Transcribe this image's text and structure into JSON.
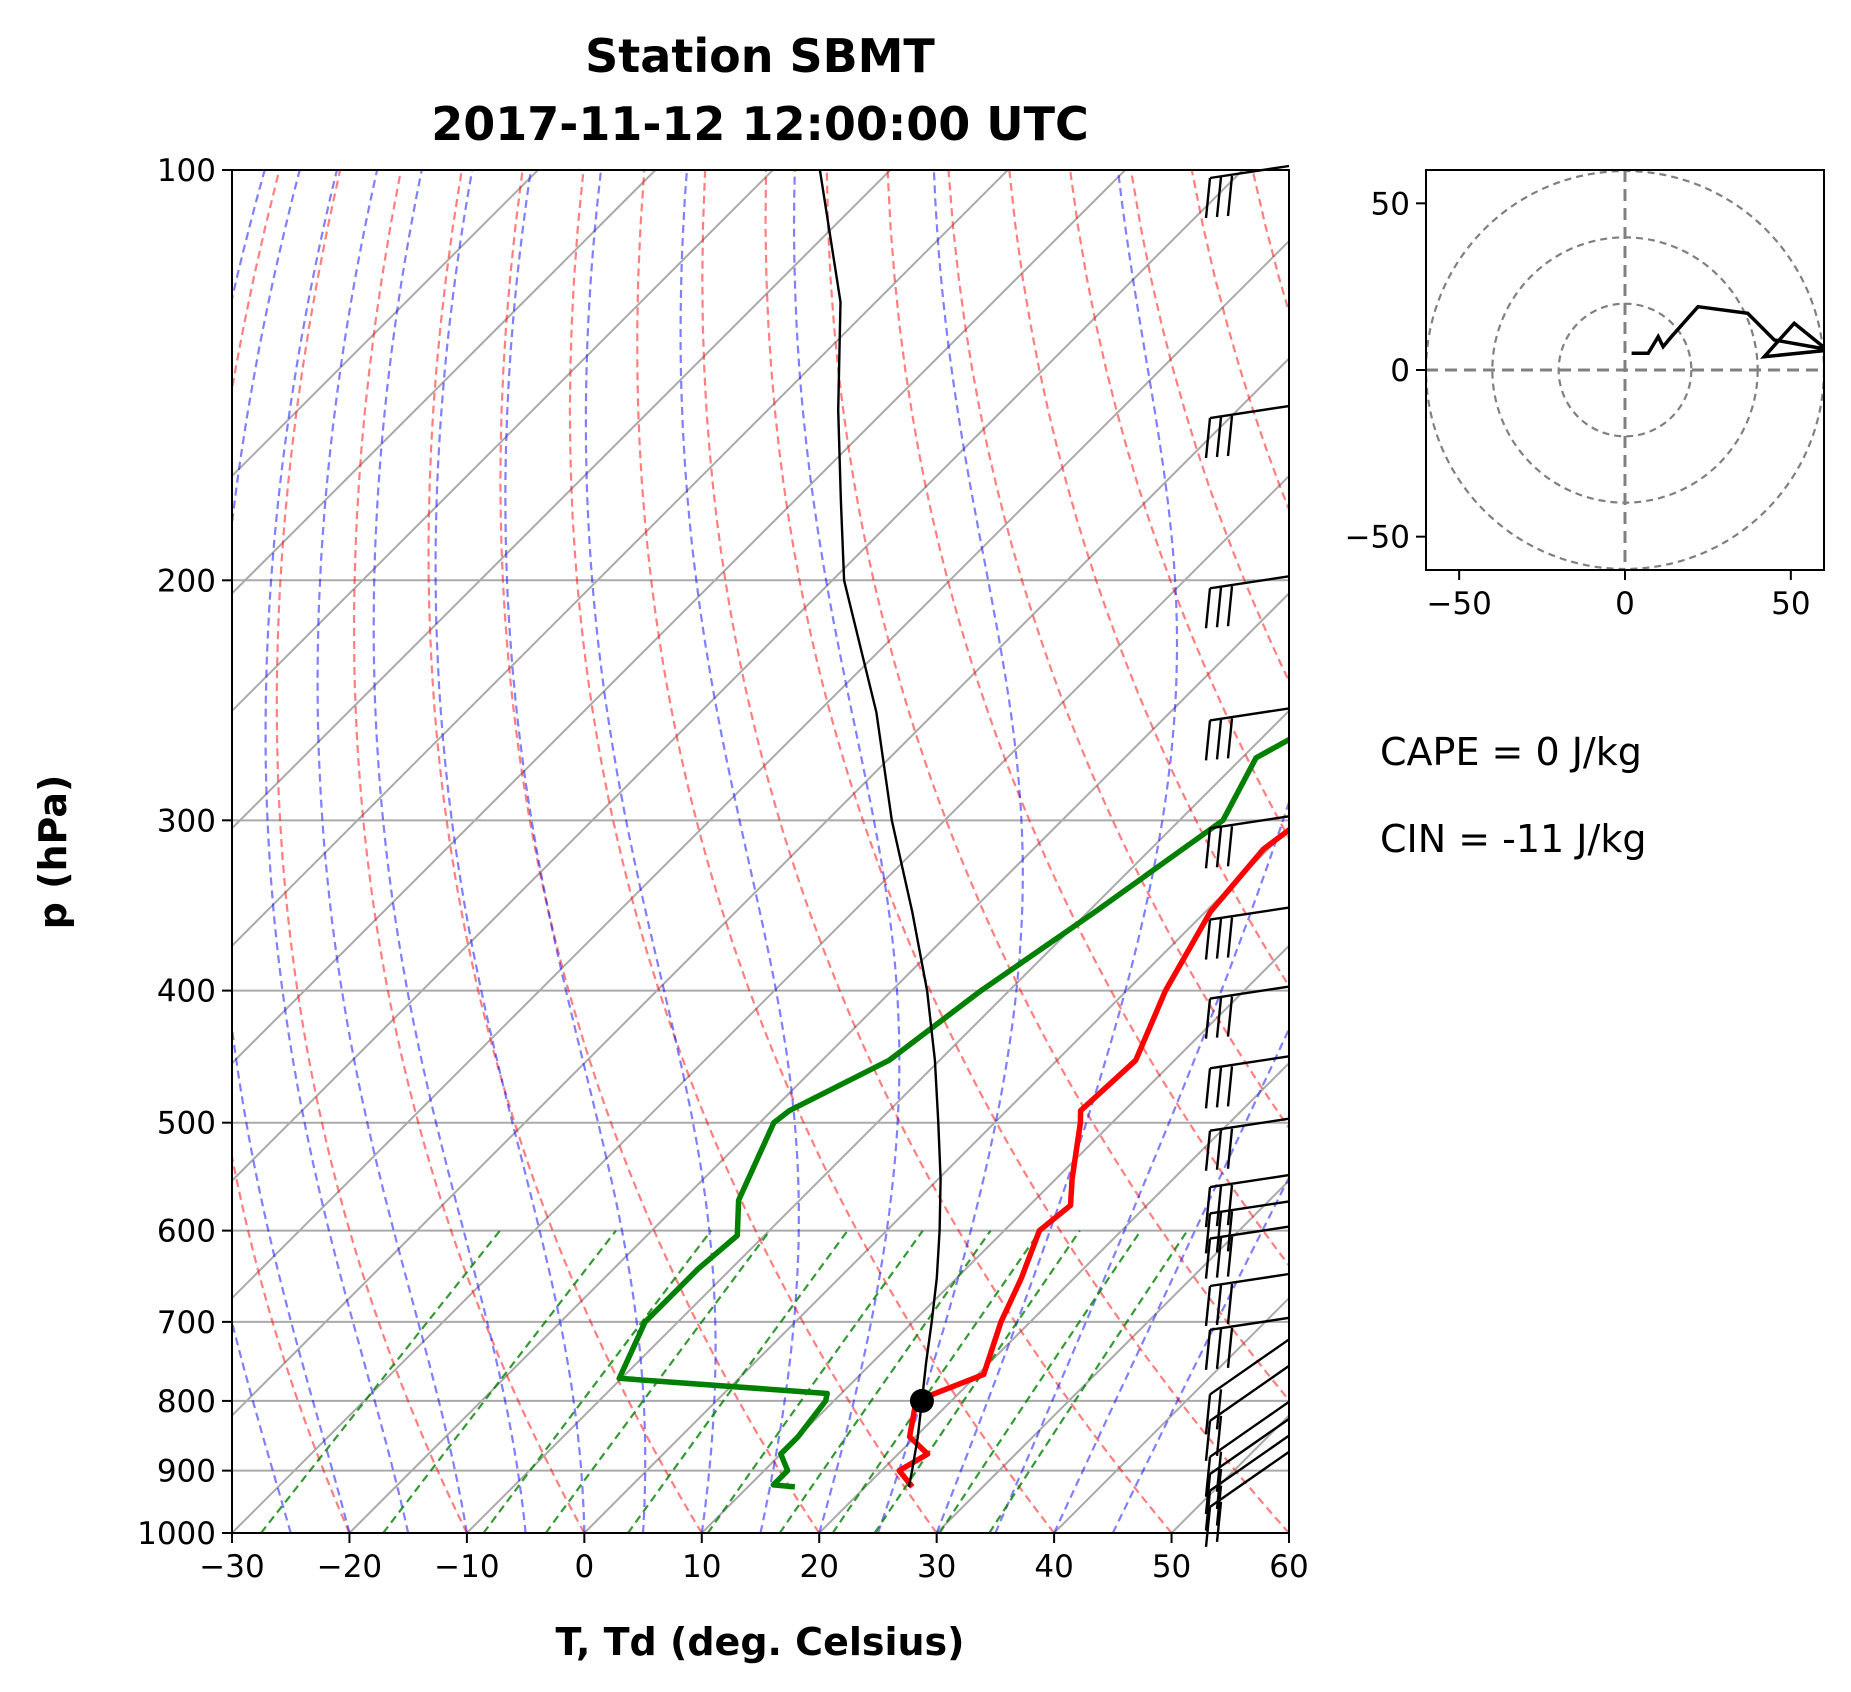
{
  "chart_data": [
    {
      "type": "line",
      "kind": "skew-t log-p sounding",
      "title_line1": "Station SBMT",
      "title_line2": "2017-11-12 12:00:00 UTC",
      "xlabel": "T, Td (deg. Celsius)",
      "ylabel": "p (hPa)",
      "xlim": [
        -30,
        60
      ],
      "ylim": [
        1000,
        100
      ],
      "y_scale": "log",
      "x_ticks": [
        "−30",
        "−20",
        "−10",
        "0",
        "10",
        "20",
        "30",
        "40",
        "50",
        "60"
      ],
      "y_ticks": [
        "1000",
        "900",
        "800",
        "700",
        "600",
        "500",
        "400",
        "300",
        "200",
        "100"
      ],
      "grid": true,
      "series": [
        {
          "color": "#ff0000",
          "pressure": [
            925,
            900,
            875,
            850,
            800,
            765,
            700,
            650,
            600,
            575,
            550,
            500,
            490,
            450,
            400,
            350,
            315,
            300,
            270,
            250,
            225,
            200,
            175,
            150,
            130,
            100
          ],
          "values": [
            24,
            21.5,
            22.5,
            19.5,
            17,
            20.5,
            17.5,
            15.5,
            13,
            13.5,
            11.4,
            7.3,
            6.3,
            6.7,
            3.3,
            0.4,
            -0.4,
            0.4,
            0.4,
            1.1,
            0.9,
            -1.3,
            -1.4,
            -1.9,
            -4.5,
            -6.3
          ]
        },
        {
          "color": "#008000",
          "pressure": [
            925,
            922,
            900,
            875,
            850,
            800,
            790,
            770,
            700,
            640,
            605,
            570,
            500,
            490,
            450,
            400,
            350,
            300,
            270,
            255,
            225,
            200,
            175,
            150,
            125,
            100
          ],
          "values": [
            14,
            12,
            12,
            10,
            10,
            9.3,
            8.8,
            -10.2,
            -12.8,
            -12.8,
            -12.3,
            -15.2,
            -18.8,
            -18.5,
            -14.3,
            -12.4,
            -9.4,
            -6.3,
            -8.8,
            -6.5,
            -4.5,
            -3.7,
            -1.4,
            2.3,
            7.5,
            13.1
          ]
        },
        {
          "color": "#000000",
          "pressure": [
            925,
            900,
            850,
            800,
            750,
            700,
            650,
            600,
            550,
            500,
            450,
            400,
            350,
            300,
            250,
            200,
            175,
            150,
            125,
            100
          ],
          "values": [
            23.7,
            22.6,
            20.2,
            17.5,
            14.6,
            11.6,
            8.3,
            4.5,
            0.2,
            -4.8,
            -10.4,
            -17,
            -25,
            -34.5,
            -45,
            -59,
            -66,
            -74,
            -83,
            -96
          ]
        }
      ],
      "lcl": {
        "pressure": 800,
        "value": 17.5
      },
      "wind_barb_pressures": [
        925,
        900,
        875,
        850,
        800,
        765,
        700,
        650,
        600,
        575,
        550,
        500,
        450,
        400,
        350,
        300,
        250,
        200,
        150,
        100
      ]
    },
    {
      "type": "line",
      "kind": "hodograph",
      "xlim": [
        -60,
        60
      ],
      "ylim": [
        -60,
        60
      ],
      "x_ticks": [
        "−50",
        "0",
        "50"
      ],
      "y_ticks": [
        "50",
        "0",
        "−50"
      ],
      "rings": [
        20,
        40,
        60
      ],
      "x": [
        2,
        7,
        10,
        11.5,
        14,
        22,
        37,
        45,
        62,
        42,
        51,
        61
      ],
      "y": [
        5,
        5,
        10,
        7,
        10,
        19,
        17,
        9,
        6,
        4,
        14,
        6
      ]
    }
  ],
  "stats": {
    "cape": "CAPE = 0 J/kg",
    "cin": "CIN = -11 J/kg"
  }
}
